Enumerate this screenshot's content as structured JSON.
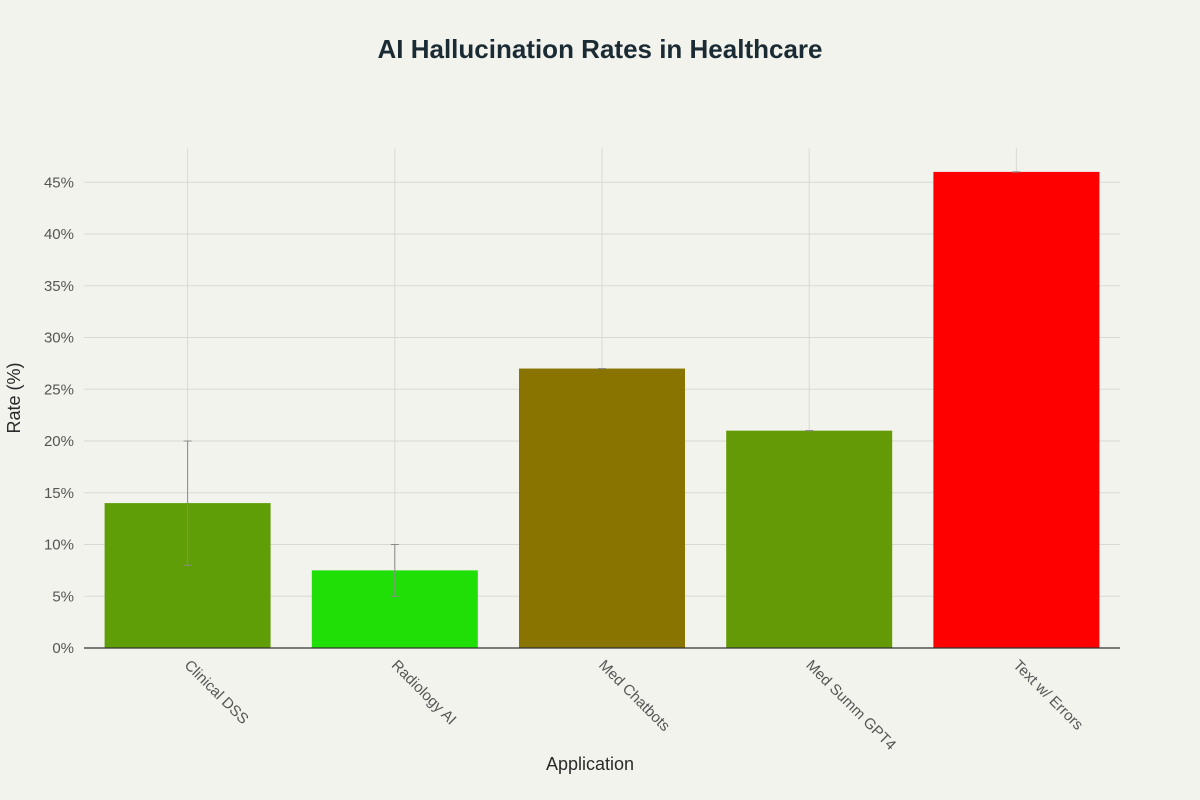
{
  "chart_data": {
    "type": "bar",
    "title": "AI Hallucination Rates in Healthcare",
    "xlabel": "Application",
    "ylabel": "Rate (%)",
    "categories": [
      "Clinical DSS",
      "Radiology AI",
      "Med Chatbots",
      "Med Summ GPT4",
      "Text w/ Errors"
    ],
    "values": [
      14,
      7.5,
      27,
      21,
      46
    ],
    "error_bars": [
      {
        "low": 8,
        "high": 20
      },
      {
        "low": 5,
        "high": 10
      },
      {
        "low": 27,
        "high": 27
      },
      {
        "low": 21,
        "high": 21
      },
      {
        "low": 46,
        "high": 46
      }
    ],
    "bar_colors": [
      "#5f9e07",
      "#1fdf07",
      "#8a7400",
      "#639a05",
      "#ff0000"
    ],
    "ylim": [
      0,
      48
    ],
    "yticks": [
      0,
      5,
      10,
      15,
      20,
      25,
      30,
      35,
      40,
      45
    ],
    "ytick_labels": [
      "0%",
      "5%",
      "10%",
      "15%",
      "20%",
      "25%",
      "30%",
      "35%",
      "40%",
      "45%"
    ],
    "grid": true,
    "legend": "none"
  }
}
